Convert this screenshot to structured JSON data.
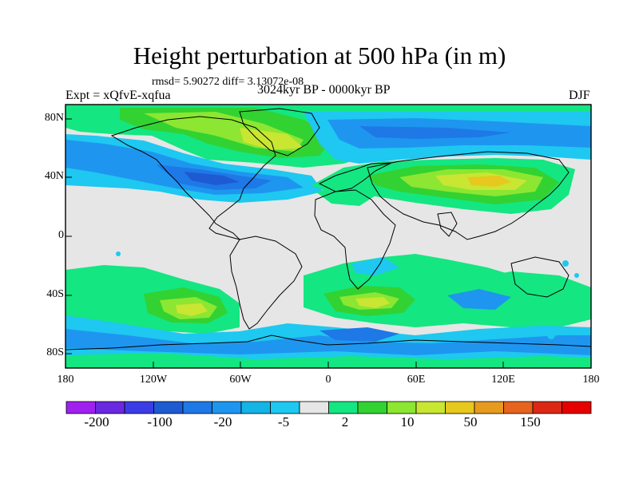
{
  "chart_data": {
    "type": "heatmap",
    "title": "Height perturbation at 500 hPa (in m)",
    "subtitle": "rmsd= 5.90272 diff= 3.13072e-08",
    "left_label": "Expt = xQfvE-xqfua",
    "center_label": "3024kyr BP - 0000kyr BP",
    "right_label": "DJF",
    "x_ticks": [
      "180",
      "120W",
      "60W",
      "0",
      "60E",
      "120E",
      "180"
    ],
    "y_ticks": [
      "80N",
      "40N",
      "0",
      "40S",
      "80S"
    ],
    "xlim": [
      -180,
      180
    ],
    "ylim": [
      -90,
      90
    ],
    "colorbar": {
      "labels": [
        "-200",
        "-100",
        "-20",
        "-5",
        "2",
        "10",
        "50",
        "150"
      ],
      "colors": [
        "#a020f0",
        "#6a28e0",
        "#3c3ce6",
        "#1e5ad2",
        "#1e78e6",
        "#1e96f0",
        "#14b4e6",
        "#1ec8f0",
        "#e6e6e6",
        "#14e682",
        "#32d232",
        "#8ce632",
        "#c8e632",
        "#e6c81e",
        "#e69b1e",
        "#e6641e",
        "#dc2814",
        "#e60000"
      ]
    },
    "features": [
      {
        "region": "Arctic / North Atlantic",
        "lon": -40,
        "lat": 70,
        "level": "positive",
        "value_range": [
          2,
          50
        ]
      },
      {
        "region": "North Pacific / North America",
        "lon": -120,
        "lat": 42,
        "level": "negative",
        "value_range": [
          -20,
          -2
        ]
      },
      {
        "region": "Northern Eurasia",
        "lon": 60,
        "lat": 65,
        "level": "negative",
        "value_range": [
          -20,
          -2
        ]
      },
      {
        "region": "Central Asia / East Asia",
        "lon": 100,
        "lat": 40,
        "level": "positive",
        "value_range": [
          10,
          50
        ]
      },
      {
        "region": "South Pacific",
        "lon": -100,
        "lat": -50,
        "level": "positive",
        "value_range": [
          2,
          50
        ]
      },
      {
        "region": "South Atlantic / Indian",
        "lon": 30,
        "lat": -45,
        "level": "positive",
        "value_range": [
          2,
          50
        ]
      },
      {
        "region": "Antarctic margin",
        "lon": 0,
        "lat": -75,
        "level": "negative",
        "value_range": [
          -5,
          -2
        ]
      }
    ]
  }
}
